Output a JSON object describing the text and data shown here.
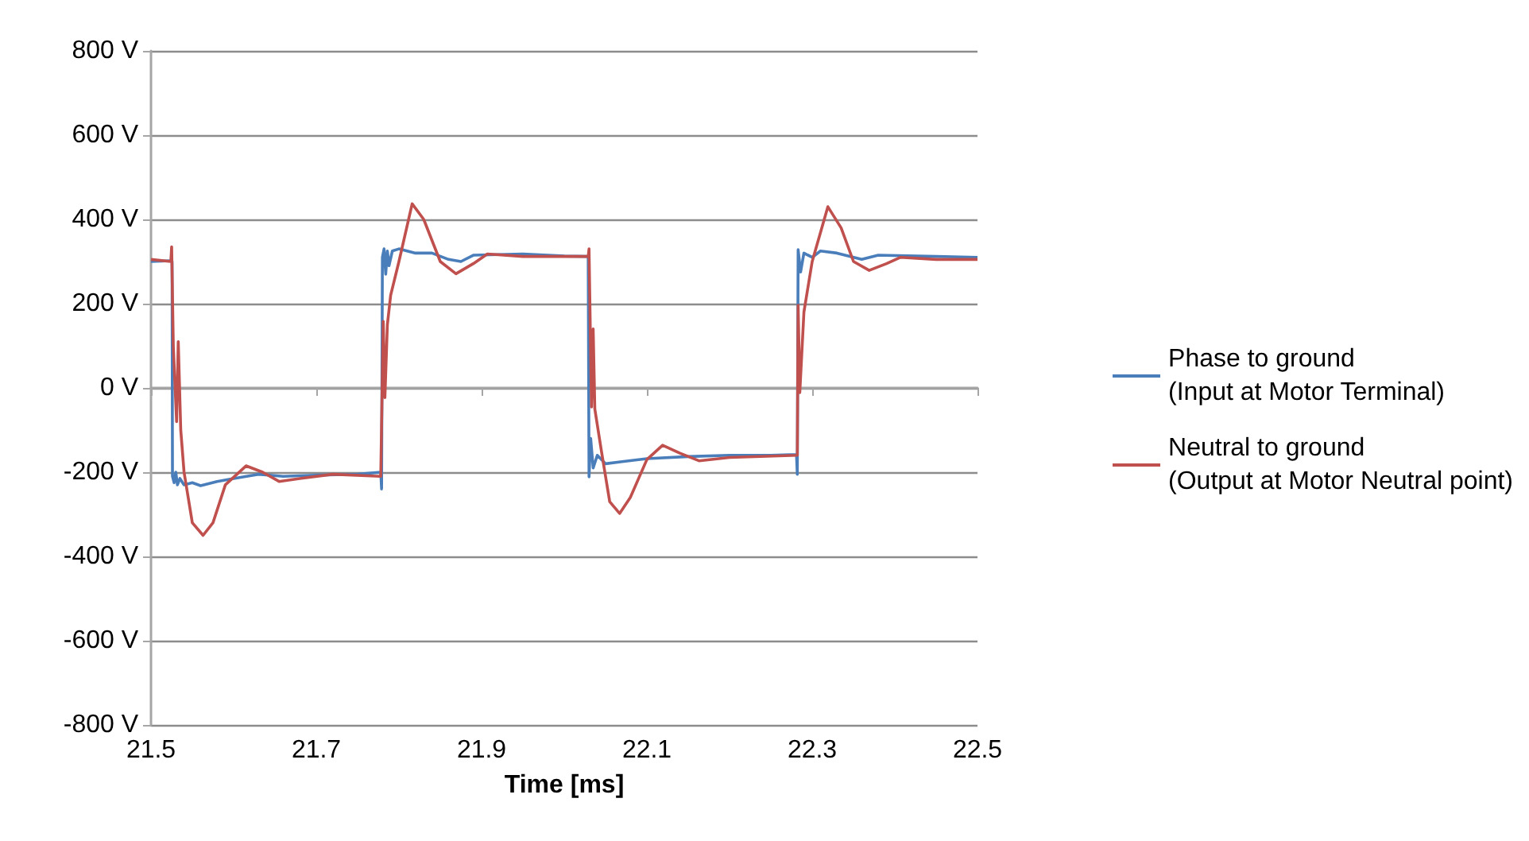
{
  "chart_data": {
    "type": "line",
    "xlabel": "Time [ms]",
    "xlim": [
      21.5,
      22.5
    ],
    "xticks": [
      21.5,
      21.7,
      21.9,
      22.1,
      22.3,
      22.5
    ],
    "ylim": [
      -800,
      800
    ],
    "yticks": [
      {
        "value": -800,
        "label": "-800 V"
      },
      {
        "value": -600,
        "label": "-600 V"
      },
      {
        "value": -400,
        "label": "-400 V"
      },
      {
        "value": -200,
        "label": "-200 V"
      },
      {
        "value": 0,
        "label": "0 V"
      },
      {
        "value": 200,
        "label": "200 V"
      },
      {
        "value": 400,
        "label": "400 V"
      },
      {
        "value": 600,
        "label": "600 V"
      },
      {
        "value": 800,
        "label": "800 V"
      }
    ],
    "grid": "y",
    "legend": "right",
    "marker": "none",
    "line_style": "solid",
    "series": [
      {
        "name": "Phase to ground\n(Input at Motor Terminal)",
        "color": "#4a7ebb",
        "x": [
          21.5,
          21.524,
          21.5255,
          21.526,
          21.528,
          21.53,
          21.532,
          21.535,
          21.54,
          21.55,
          21.56,
          21.58,
          21.6,
          21.63,
          21.66,
          21.7,
          21.75,
          21.778,
          21.779,
          21.78,
          21.782,
          21.784,
          21.786,
          21.788,
          21.792,
          21.8,
          21.82,
          21.84,
          21.86,
          21.875,
          21.89,
          21.95,
          22.0,
          22.029,
          22.03,
          22.032,
          22.035,
          22.04,
          22.05,
          22.07,
          22.1,
          22.15,
          22.2,
          22.25,
          22.281,
          22.282,
          22.283,
          22.286,
          22.29,
          22.3,
          22.31,
          22.33,
          22.36,
          22.38,
          22.45,
          22.5
        ],
        "values": [
          300,
          302,
          300,
          -210,
          -225,
          -200,
          -230,
          -215,
          -230,
          -225,
          -232,
          -222,
          -215,
          -205,
          -210,
          -207,
          -205,
          -200,
          -240,
          310,
          330,
          270,
          325,
          290,
          325,
          330,
          320,
          320,
          305,
          300,
          315,
          318,
          313,
          312,
          -211,
          -120,
          -190,
          -160,
          -180,
          -175,
          -168,
          -163,
          -160,
          -160,
          -158,
          -205,
          328,
          275,
          320,
          310,
          325,
          320,
          305,
          315,
          312,
          310
        ]
      },
      {
        "name": "Neutral to ground\n(Output at Motor Neutral point)",
        "color": "#c0504d",
        "x": [
          21.5,
          21.524,
          21.525,
          21.527,
          21.531,
          21.533,
          21.536,
          21.54,
          21.55,
          21.563,
          21.575,
          21.59,
          21.615,
          21.635,
          21.655,
          21.68,
          21.72,
          21.778,
          21.781,
          21.783,
          21.786,
          21.79,
          21.8,
          21.816,
          21.83,
          21.85,
          21.869,
          21.89,
          21.907,
          21.95,
          22.029,
          22.03,
          22.033,
          22.035,
          22.037,
          22.045,
          22.055,
          22.067,
          22.08,
          22.1,
          22.119,
          22.14,
          22.163,
          22.2,
          22.282,
          22.283,
          22.285,
          22.29,
          22.3,
          22.319,
          22.335,
          22.35,
          22.369,
          22.39,
          22.407,
          22.45,
          22.5
        ],
        "values": [
          305,
          300,
          335,
          100,
          -80,
          110,
          -100,
          -200,
          -320,
          -350,
          -320,
          -230,
          -185,
          -200,
          -222,
          -215,
          -205,
          -210,
          158,
          -23,
          150,
          220,
          300,
          437,
          400,
          300,
          271,
          295,
          318,
          312,
          312,
          330,
          -45,
          140,
          -50,
          -150,
          -270,
          -298,
          -260,
          -170,
          -136,
          -155,
          -173,
          -165,
          -160,
          196,
          -11,
          180,
          300,
          430,
          380,
          300,
          279,
          295,
          310,
          305,
          305
        ]
      }
    ]
  }
}
